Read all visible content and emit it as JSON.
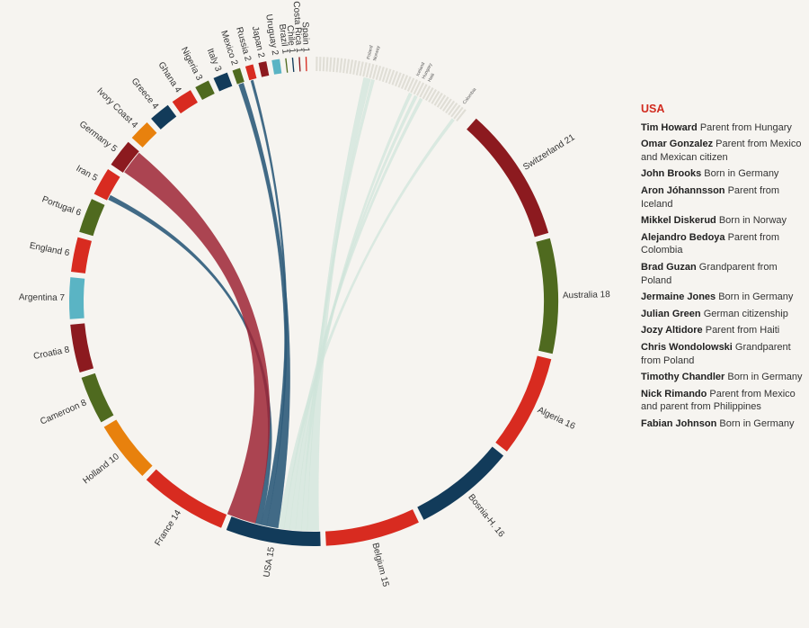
{
  "colors": {
    "red": "#d82b20",
    "dark_red": "#8c1a1f",
    "green": "#4f6a1f",
    "navy": "#123b5a",
    "teal": "#5ab4c4",
    "orange": "#e8810d",
    "faint": "#e0ded6",
    "ribbon_navy": "#2e5b7a",
    "ribbon_red": "#9e2435",
    "ribbon_mint": "#cfe4da"
  },
  "chart_data": {
    "type": "chord",
    "title": "",
    "segments": [
      {
        "name": "Switzerland",
        "value": 21,
        "label": "Switzerland 21",
        "color": "dark_red"
      },
      {
        "name": "Australia",
        "value": 18,
        "label": "Australia 18",
        "color": "green"
      },
      {
        "name": "Algeria",
        "value": 16,
        "label": "Algeria 16",
        "color": "red"
      },
      {
        "name": "Bosnia-H.",
        "value": 16,
        "label": "Bosnia-H. 16",
        "color": "navy"
      },
      {
        "name": "Belgium",
        "value": 15,
        "label": "Belgium 15",
        "color": "red"
      },
      {
        "name": "USA",
        "value": 15,
        "label": "USA 15",
        "color": "navy"
      },
      {
        "name": "France",
        "value": 14,
        "label": "France 14",
        "color": "red"
      },
      {
        "name": "Holland",
        "value": 10,
        "label": "Holland 10",
        "color": "orange"
      },
      {
        "name": "Cameroon",
        "value": 8,
        "label": "Cameroon 8",
        "color": "green"
      },
      {
        "name": "Croatia",
        "value": 8,
        "label": "Croatia 8",
        "color": "dark_red"
      },
      {
        "name": "Argentina",
        "value": 7,
        "label": "Argentina 7",
        "color": "teal"
      },
      {
        "name": "England",
        "value": 6,
        "label": "England 6",
        "color": "red"
      },
      {
        "name": "Portugal",
        "value": 6,
        "label": "Portugal 6",
        "color": "green"
      },
      {
        "name": "Iran",
        "value": 5,
        "label": "Iran 5",
        "color": "red"
      },
      {
        "name": "Germany",
        "value": 5,
        "label": "Germany 5",
        "color": "dark_red"
      },
      {
        "name": "Ivory Coast",
        "value": 4,
        "label": "Ivory Coast 4",
        "color": "orange"
      },
      {
        "name": "Greece",
        "value": 4,
        "label": "Greece 4",
        "color": "navy"
      },
      {
        "name": "Ghana",
        "value": 4,
        "label": "Ghana 4",
        "color": "red"
      },
      {
        "name": "Nigeria",
        "value": 3,
        "label": "Nigeria 3",
        "color": "green"
      },
      {
        "name": "Italy",
        "value": 3,
        "label": "Italy 3",
        "color": "navy"
      },
      {
        "name": "Mexico",
        "value": 2,
        "label": "Mexico 2",
        "color": "green"
      },
      {
        "name": "Russia",
        "value": 2,
        "label": "Russia 2",
        "color": "red"
      },
      {
        "name": "Japan",
        "value": 2,
        "label": "Japan 2",
        "color": "dark_red"
      },
      {
        "name": "Uruguay",
        "value": 2,
        "label": "Uruguay 2",
        "color": "teal"
      },
      {
        "name": "Brazil",
        "value": 1,
        "label": "Brazil 1",
        "color": "green"
      },
      {
        "name": "Chile",
        "value": 1,
        "label": "Chile 1",
        "color": "navy"
      },
      {
        "name": "Costa Rica",
        "value": 1,
        "label": "Costa Rica 1",
        "color": "dark_red"
      },
      {
        "name": "Spain",
        "value": 1,
        "label": "Spain 1",
        "color": "red"
      }
    ],
    "minor_labels": [
      "Poland",
      "Norway",
      "Iceland",
      "Hungary",
      "Haiti",
      "Colombia"
    ],
    "links": [
      {
        "from": "USA",
        "to": "Germany",
        "value": 5,
        "color": "ribbon_red"
      },
      {
        "from": "USA",
        "to": "Mexico",
        "value": 2,
        "color": "ribbon_navy"
      },
      {
        "from": "USA",
        "to": "Russia",
        "value": 1,
        "color": "ribbon_navy"
      },
      {
        "from": "USA",
        "to": "Iran",
        "value": 1,
        "color": "ribbon_navy"
      },
      {
        "from": "USA",
        "to": "Poland",
        "value": 2,
        "color": "ribbon_mint"
      },
      {
        "from": "USA",
        "to": "Norway",
        "value": 1,
        "color": "ribbon_mint"
      },
      {
        "from": "USA",
        "to": "Iceland",
        "value": 1,
        "color": "ribbon_mint"
      },
      {
        "from": "USA",
        "to": "Hungary",
        "value": 1,
        "color": "ribbon_mint"
      },
      {
        "from": "USA",
        "to": "Haiti",
        "value": 1,
        "color": "ribbon_mint"
      },
      {
        "from": "USA",
        "to": "Colombia",
        "value": 1,
        "color": "ribbon_mint"
      }
    ]
  },
  "panel": {
    "title": "USA",
    "players": [
      {
        "name": "Tim Howard",
        "note": "Parent from Hungary"
      },
      {
        "name": "Omar Gonzalez",
        "note": "Parent from Mexico and Mexican citizen"
      },
      {
        "name": "John Brooks",
        "note": "Born in Germany"
      },
      {
        "name": "Aron Jóhannsson",
        "note": "Parent from Iceland"
      },
      {
        "name": "Mikkel Diskerud",
        "note": "Born in Norway"
      },
      {
        "name": "Alejandro Bedoya",
        "note": "Parent from Colombia"
      },
      {
        "name": "Brad Guzan",
        "note": "Grandparent from Poland"
      },
      {
        "name": "Jermaine Jones",
        "note": "Born in Germany"
      },
      {
        "name": "Julian Green",
        "note": "German citizenship"
      },
      {
        "name": "Jozy Altidore",
        "note": "Parent from Haiti"
      },
      {
        "name": "Chris Wondolowski",
        "note": "Grandparent from Poland"
      },
      {
        "name": "Timothy Chandler",
        "note": "Born in Germany"
      },
      {
        "name": "Nick Rimando",
        "note": "Parent from Mexico and parent from Philippines"
      },
      {
        "name": "Fabian Johnson",
        "note": "Born in Germany"
      }
    ]
  }
}
